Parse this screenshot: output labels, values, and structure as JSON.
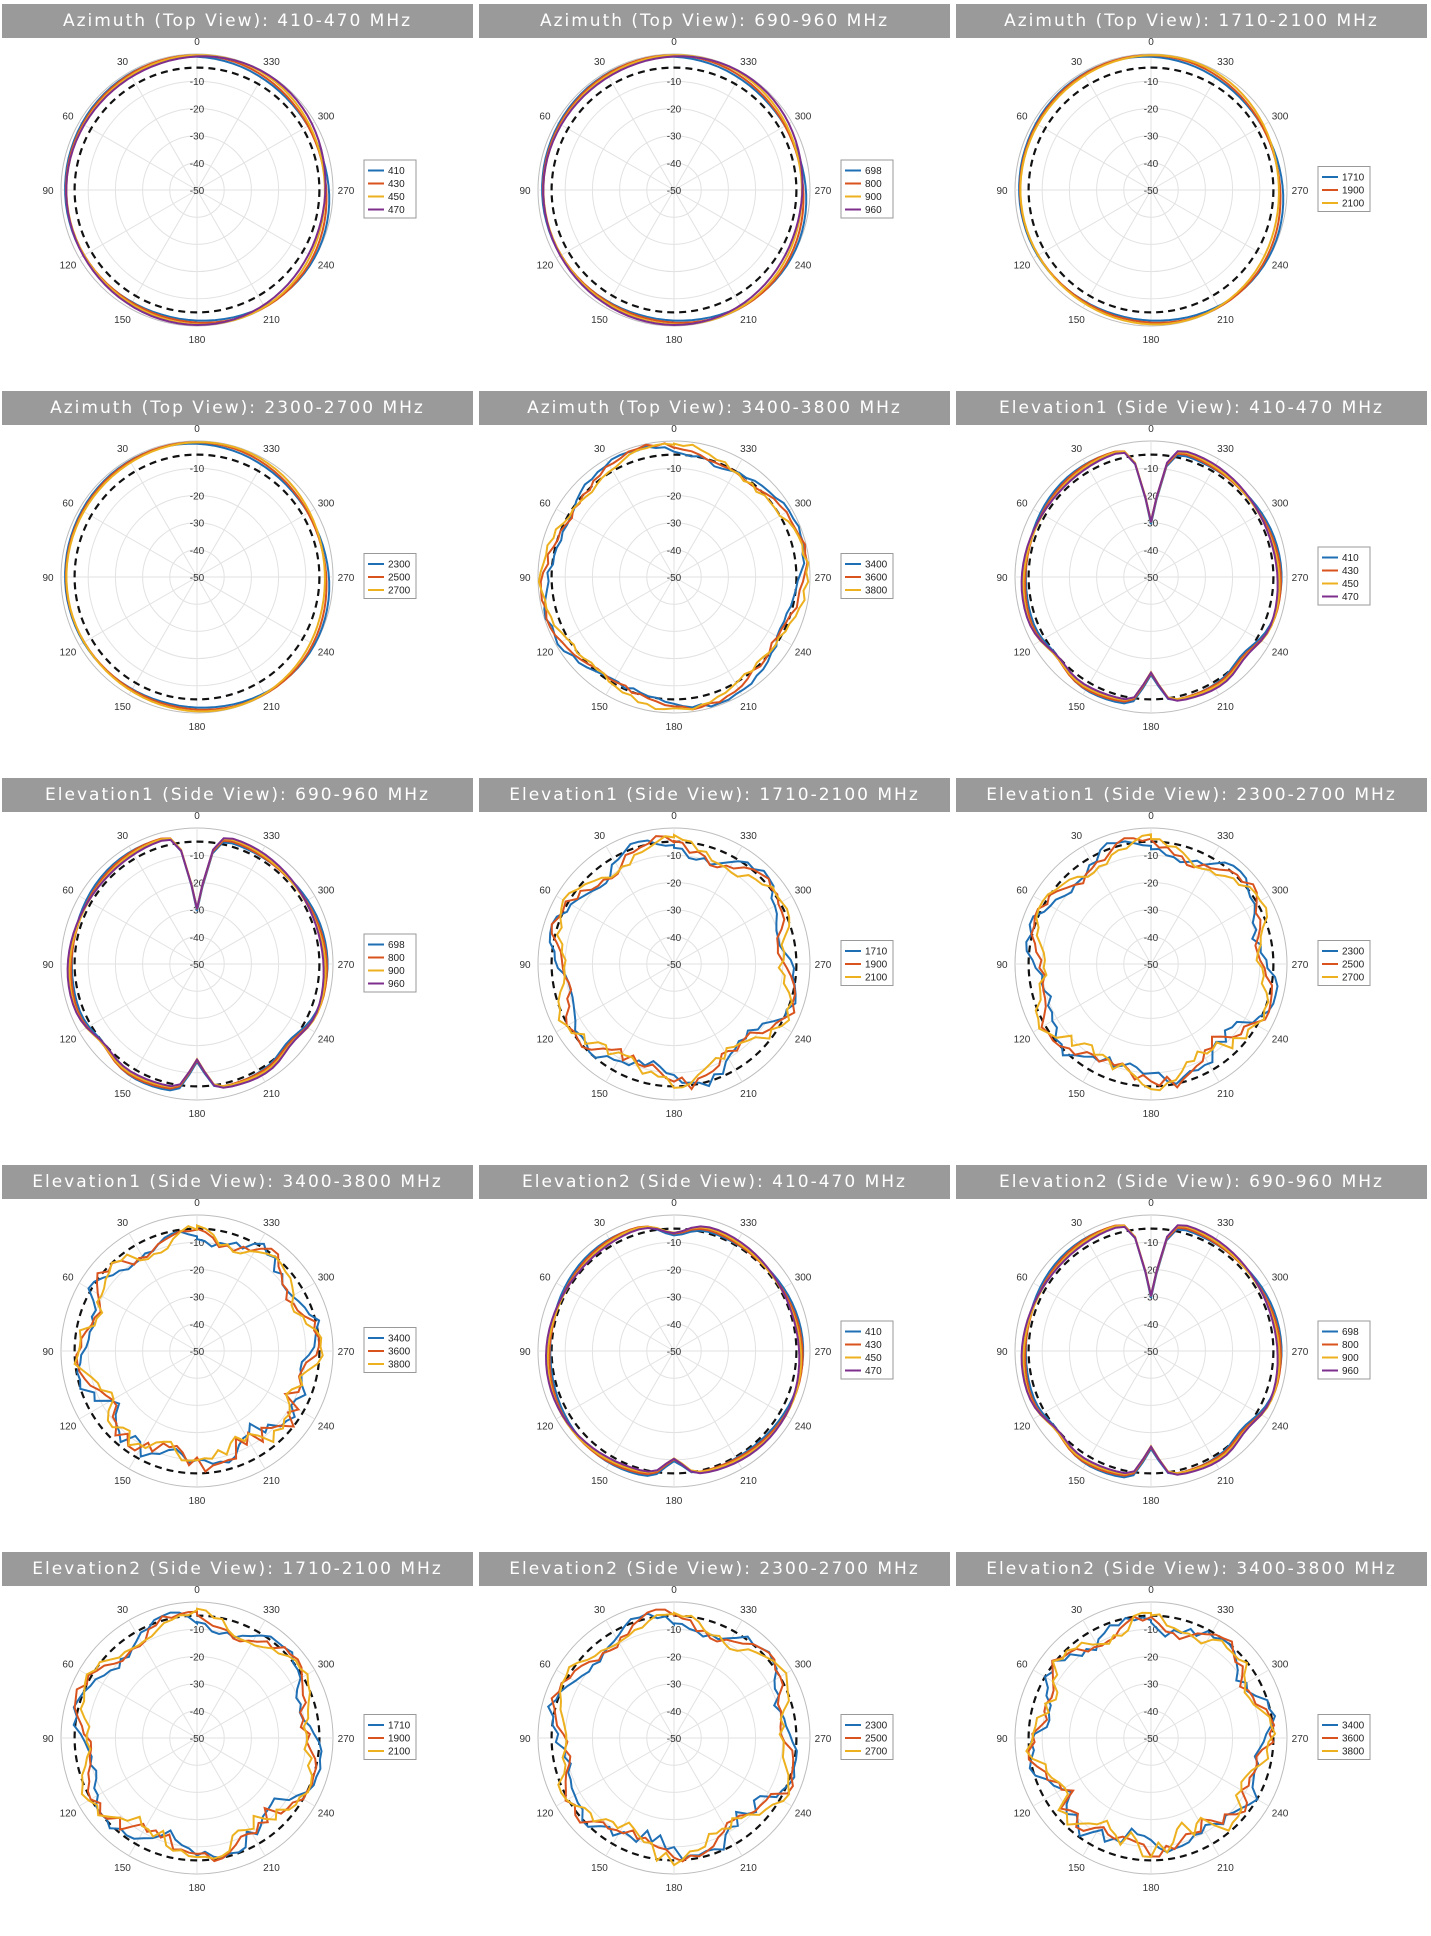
{
  "colors": {
    "blue": "#1f6fb5",
    "orange": "#d9531e",
    "yellow": "#edb120",
    "purple": "#7e2f8e"
  },
  "angle_labels": [
    "0",
    "30",
    "60",
    "90",
    "120",
    "150",
    "180",
    "210",
    "240",
    "270",
    "300",
    "330"
  ],
  "radial_labels": [
    "-10",
    "-20",
    "-30",
    "-40",
    "-50"
  ],
  "chart_data": [
    {
      "type": "polar",
      "title": "Azimuth (Top View): 410-470 MHz",
      "legend": [
        "410",
        "430",
        "450",
        "470"
      ],
      "pattern": "omni",
      "rlim": [
        -50,
        0
      ]
    },
    {
      "type": "polar",
      "title": "Azimuth (Top View): 690-960 MHz",
      "legend": [
        "698",
        "800",
        "900",
        "960"
      ],
      "pattern": "omni",
      "rlim": [
        -50,
        0
      ]
    },
    {
      "type": "polar",
      "title": "Azimuth (Top View): 1710-2100 MHz",
      "legend": [
        "1710",
        "1900",
        "2100"
      ],
      "pattern": "omni",
      "rlim": [
        -50,
        0
      ]
    },
    {
      "type": "polar",
      "title": "Azimuth (Top View): 2300-2700 MHz",
      "legend": [
        "2300",
        "2500",
        "2700"
      ],
      "pattern": "omni",
      "rlim": [
        -50,
        0
      ]
    },
    {
      "type": "polar",
      "title": "Azimuth (Top View): 3400-3800 MHz",
      "legend": [
        "3400",
        "3600",
        "3800"
      ],
      "pattern": "omni-high",
      "rlim": [
        -50,
        0
      ]
    },
    {
      "type": "polar",
      "title": "Elevation1 (Side View): 410-470 MHz",
      "legend": [
        "410",
        "430",
        "450",
        "470"
      ],
      "pattern": "dipole",
      "rlim": [
        -50,
        0
      ]
    },
    {
      "type": "polar",
      "title": "Elevation1 (Side View): 690-960 MHz",
      "legend": [
        "698",
        "800",
        "900",
        "960"
      ],
      "pattern": "dipole",
      "rlim": [
        -50,
        0
      ]
    },
    {
      "type": "polar",
      "title": "Elevation1 (Side View): 1710-2100 MHz",
      "legend": [
        "1710",
        "1900",
        "2100"
      ],
      "pattern": "lobed",
      "rlim": [
        -50,
        0
      ]
    },
    {
      "type": "polar",
      "title": "Elevation1 (Side View): 2300-2700 MHz",
      "legend": [
        "2300",
        "2500",
        "2700"
      ],
      "pattern": "lobed",
      "rlim": [
        -50,
        0
      ]
    },
    {
      "type": "polar",
      "title": "Elevation1 (Side View): 3400-3800 MHz",
      "legend": [
        "3400",
        "3600",
        "3800"
      ],
      "pattern": "lobed-high",
      "rlim": [
        -50,
        0
      ]
    },
    {
      "type": "polar",
      "title": "Elevation2 (Side View): 410-470 MHz",
      "legend": [
        "410",
        "430",
        "450",
        "470"
      ],
      "pattern": "dipole2",
      "rlim": [
        -50,
        0
      ]
    },
    {
      "type": "polar",
      "title": "Elevation2 (Side View): 690-960 MHz",
      "legend": [
        "698",
        "800",
        "900",
        "960"
      ],
      "pattern": "dipole",
      "rlim": [
        -50,
        0
      ]
    },
    {
      "type": "polar",
      "title": "Elevation2 (Side View): 1710-2100 MHz",
      "legend": [
        "1710",
        "1900",
        "2100"
      ],
      "pattern": "lobed",
      "rlim": [
        -50,
        0
      ]
    },
    {
      "type": "polar",
      "title": "Elevation2 (Side View): 2300-2700 MHz",
      "legend": [
        "2300",
        "2500",
        "2700"
      ],
      "pattern": "lobed",
      "rlim": [
        -50,
        0
      ]
    },
    {
      "type": "polar",
      "title": "Elevation2 (Side View): 3400-3800 MHz",
      "legend": [
        "3400",
        "3600",
        "3800"
      ],
      "pattern": "lobed-high",
      "rlim": [
        -50,
        0
      ]
    }
  ]
}
